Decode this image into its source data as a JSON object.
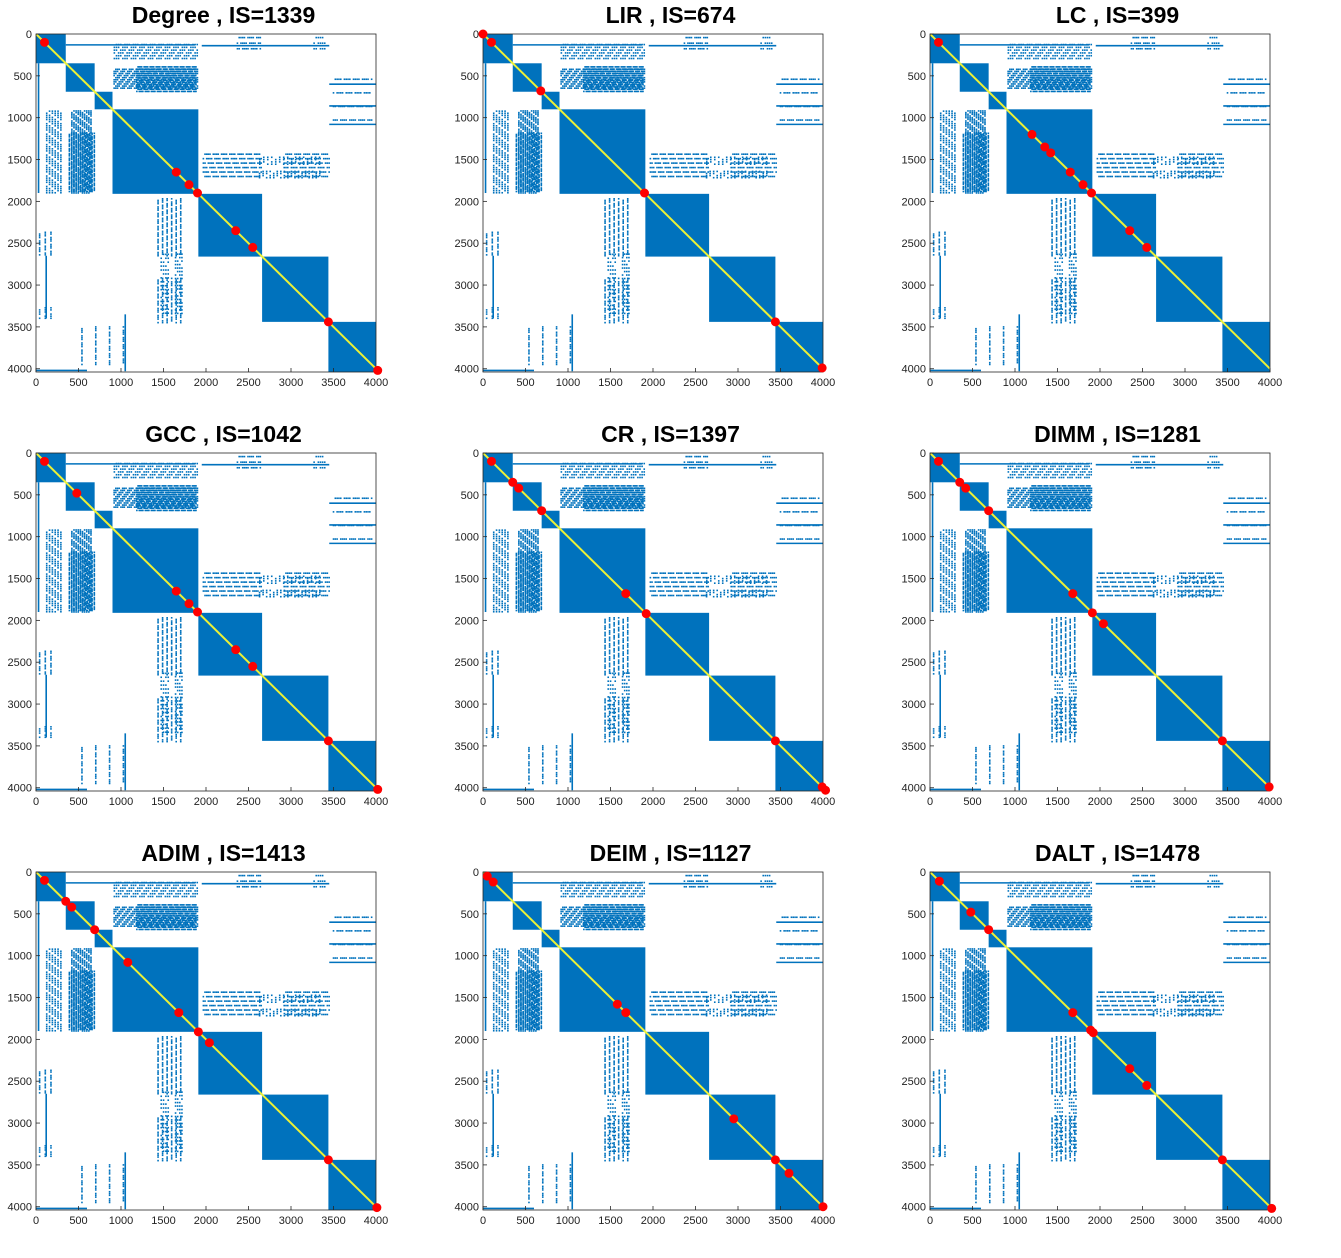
{
  "chart_data": [
    {
      "type": "scatter",
      "title": "Degree , IS=1339",
      "xlim": [
        0,
        4000
      ],
      "ylim": [
        0,
        4039
      ],
      "x_ticks": [
        0,
        500,
        1000,
        1500,
        2000,
        2500,
        3000,
        3500,
        4000
      ],
      "y_ticks": [
        0,
        500,
        1000,
        1500,
        2000,
        2500,
        3000,
        3500,
        4000
      ],
      "y_reversed": true,
      "seeds": [
        100,
        1650,
        1800,
        1900,
        2350,
        2550,
        3440,
        4020
      ]
    },
    {
      "type": "scatter",
      "title": "LIR , IS=674",
      "xlim": [
        0,
        4000
      ],
      "ylim": [
        0,
        4039
      ],
      "x_ticks": [
        0,
        500,
        1000,
        1500,
        2000,
        2500,
        3000,
        3500,
        4000
      ],
      "y_ticks": [
        0,
        500,
        1000,
        1500,
        2000,
        2500,
        3000,
        3500,
        4000
      ],
      "y_reversed": true,
      "seeds": [
        0,
        100,
        680,
        1900,
        3440,
        3990
      ]
    },
    {
      "type": "scatter",
      "title": "LC , IS=399",
      "xlim": [
        0,
        4000
      ],
      "ylim": [
        0,
        4039
      ],
      "x_ticks": [
        0,
        500,
        1000,
        1500,
        2000,
        2500,
        3000,
        3500,
        4000
      ],
      "y_ticks": [
        0,
        500,
        1000,
        1500,
        2000,
        2500,
        3000,
        3500,
        4000
      ],
      "y_reversed": true,
      "seeds": [
        100,
        1200,
        1350,
        1420,
        1650,
        1800,
        1900,
        2350,
        2550
      ]
    },
    {
      "type": "scatter",
      "title": "GCC , IS=1042",
      "xlim": [
        0,
        4000
      ],
      "ylim": [
        0,
        4039
      ],
      "x_ticks": [
        0,
        500,
        1000,
        1500,
        2000,
        2500,
        3000,
        3500,
        4000
      ],
      "y_ticks": [
        0,
        500,
        1000,
        1500,
        2000,
        2500,
        3000,
        3500,
        4000
      ],
      "y_reversed": true,
      "seeds": [
        100,
        480,
        1650,
        1800,
        1900,
        2350,
        2550,
        3440,
        4020
      ]
    },
    {
      "type": "scatter",
      "title": "CR , IS=1397",
      "xlim": [
        0,
        4000
      ],
      "ylim": [
        0,
        4039
      ],
      "x_ticks": [
        0,
        500,
        1000,
        1500,
        2000,
        2500,
        3000,
        3500,
        4000
      ],
      "y_ticks": [
        0,
        500,
        1000,
        1500,
        2000,
        2500,
        3000,
        3500,
        4000
      ],
      "y_reversed": true,
      "seeds": [
        100,
        350,
        420,
        690,
        1680,
        1920,
        3440,
        3990,
        4030
      ]
    },
    {
      "type": "scatter",
      "title": "DIMM , IS=1281",
      "xlim": [
        0,
        4000
      ],
      "ylim": [
        0,
        4039
      ],
      "x_ticks": [
        0,
        500,
        1000,
        1500,
        2000,
        2500,
        3000,
        3500,
        4000
      ],
      "y_ticks": [
        0,
        500,
        1000,
        1500,
        2000,
        2500,
        3000,
        3500,
        4000
      ],
      "y_reversed": true,
      "seeds": [
        100,
        350,
        420,
        690,
        1680,
        1910,
        2040,
        3440,
        3990
      ]
    },
    {
      "type": "scatter",
      "title": "ADIM , IS=1413",
      "xlim": [
        0,
        4000
      ],
      "ylim": [
        0,
        4039
      ],
      "x_ticks": [
        0,
        500,
        1000,
        1500,
        2000,
        2500,
        3000,
        3500,
        4000
      ],
      "y_ticks": [
        0,
        500,
        1000,
        1500,
        2000,
        2500,
        3000,
        3500,
        4000
      ],
      "y_reversed": true,
      "seeds": [
        100,
        350,
        420,
        690,
        1080,
        1680,
        1910,
        2040,
        3440,
        4010
      ]
    },
    {
      "type": "scatter",
      "title": "DEIM , IS=1127",
      "xlim": [
        0,
        4000
      ],
      "ylim": [
        0,
        4039
      ],
      "x_ticks": [
        0,
        500,
        1000,
        1500,
        2000,
        2500,
        3000,
        3500,
        4000
      ],
      "y_ticks": [
        0,
        500,
        1000,
        1500,
        2000,
        2500,
        3000,
        3500,
        4000
      ],
      "y_reversed": true,
      "seeds": [
        50,
        120,
        1580,
        1680,
        2950,
        3440,
        3600,
        4000
      ]
    },
    {
      "type": "scatter",
      "title": "DALT , IS=1478",
      "xlim": [
        0,
        4000
      ],
      "ylim": [
        0,
        4039
      ],
      "x_ticks": [
        0,
        500,
        1000,
        1500,
        2000,
        2500,
        3000,
        3500,
        4000
      ],
      "y_ticks": [
        0,
        500,
        1000,
        1500,
        2000,
        2500,
        3000,
        3500,
        4000
      ],
      "y_reversed": true,
      "seeds": [
        110,
        480,
        690,
        1680,
        1890,
        1920,
        2350,
        2550,
        3440,
        4020
      ]
    }
  ],
  "colors": {
    "blocks": "#0072BD",
    "diagonal": "#EDF135",
    "seeds": "#FF0000"
  }
}
